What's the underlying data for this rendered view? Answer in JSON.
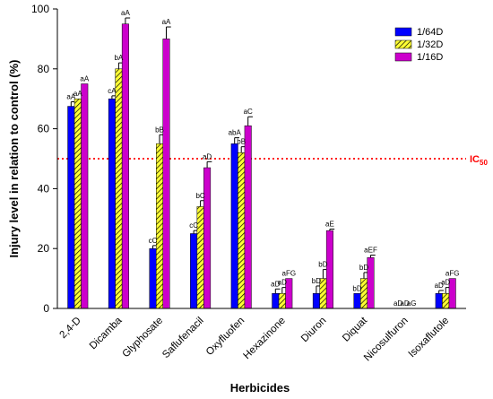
{
  "chart_data": {
    "type": "bar",
    "xlabel": "Herbicides",
    "ylabel": "Injury level in relation to control (%)",
    "ylim": [
      0,
      100
    ],
    "yticks": [
      0,
      20,
      40,
      60,
      80,
      100
    ],
    "categories": [
      "2,4-D",
      "Dicamba",
      "Glyphosate",
      "Saflufenacil",
      "Oxyfluofen",
      "Hexazinone",
      "Diuron",
      "Diquat",
      "Nicosulfuron",
      "Isoxaflutole"
    ],
    "series": [
      {
        "name": "1/64D",
        "color": "#0000ff",
        "pattern": "solid",
        "values": [
          67.5,
          70,
          20,
          25,
          55,
          5,
          5,
          5,
          0,
          5
        ],
        "errors": [
          1.5,
          1.0,
          1.0,
          1.0,
          2.0,
          1.5,
          2.5,
          0,
          0,
          1.0
        ],
        "labels": [
          "aA",
          "cA",
          "cC",
          "cC",
          "abA",
          "aD",
          "bD",
          "bD",
          "aD",
          "aD"
        ]
      },
      {
        "name": "1/32D",
        "color": "#ffff33",
        "pattern": "hatched",
        "values": [
          70,
          80,
          55,
          34,
          52,
          5,
          10,
          10,
          0,
          5
        ],
        "errors": [
          0,
          2.0,
          3.0,
          2.0,
          2.0,
          2.0,
          3.0,
          2.0,
          0,
          2.0
        ],
        "labels": [
          "aA",
          "bA",
          "bB",
          "bC",
          "bB",
          "aD",
          "bD",
          "bD",
          "aD",
          "aD"
        ]
      },
      {
        "name": "1/16D",
        "color": "#cc00cc",
        "pattern": "solid",
        "values": [
          75,
          95,
          90,
          47,
          61,
          10,
          26,
          17,
          0,
          10
        ],
        "errors": [
          0,
          2.0,
          4.0,
          2.0,
          3.0,
          0,
          0.5,
          0.8,
          0,
          0
        ],
        "labels": [
          "aA",
          "aA",
          "aA",
          "aD",
          "aC",
          "aFG",
          "aE",
          "aEF",
          "aG",
          "aFG"
        ]
      }
    ],
    "reference_line": {
      "value": 50,
      "label_main": "IC",
      "label_sub": "50",
      "color": "#ff0000",
      "style": "dotted"
    },
    "legend": {
      "position": "top-right"
    },
    "grid": false
  }
}
